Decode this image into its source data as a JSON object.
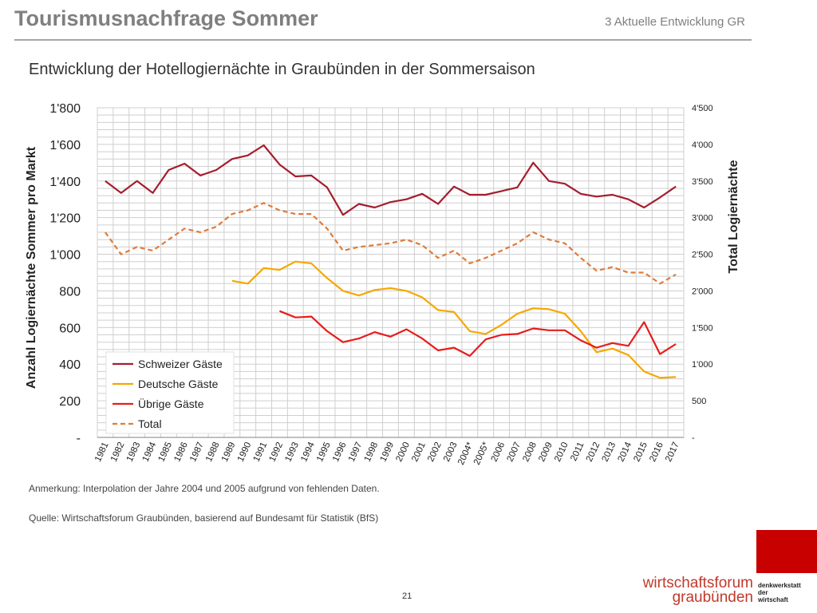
{
  "header": {
    "title": "Tourismusnachfrage Sommer",
    "section": "3 Aktuelle Entwicklung GR"
  },
  "chart_title": "Entwicklung der Hotellogiernächte in Graubünden in der Sommersaison",
  "notes": {
    "anmerkung": "Anmerkung:  Interpolation der Jahre 2004 und 2005 aufgrund von fehlenden Daten.",
    "quelle": "Quelle: Wirtschaftsforum Graubünden, basierend auf Bundesamt für Statistik (BfS)"
  },
  "footer": {
    "page": "21",
    "logo_line1": "wirtschaftsforum",
    "logo_line2": "graubünden",
    "logo_side": [
      "denkwerkstatt",
      "der",
      "wirtschaft"
    ],
    "brand_color": "#c80000"
  },
  "chart_data": {
    "type": "line",
    "categories": [
      "1981",
      "1982",
      "1983",
      "1984",
      "1985",
      "1986",
      "1987",
      "1988",
      "1989",
      "1990",
      "1991",
      "1992",
      "1993",
      "1994",
      "1995",
      "1996",
      "1997",
      "1998",
      "1999",
      "2000",
      "2001",
      "2002",
      "2003",
      "2004*",
      "2005*",
      "2006",
      "2007",
      "2008",
      "2009",
      "2010",
      "2011",
      "2012",
      "2013",
      "2014",
      "2015",
      "2016",
      "2017"
    ],
    "ylabel": "Anzahl Logiernächte Sommer pro Markt",
    "y2label": "Total Logiernächte",
    "ylim": [
      0,
      1800
    ],
    "y2lim": [
      0,
      4500
    ],
    "yticks": [
      "-",
      "200",
      "400",
      "600",
      "800",
      "1'000",
      "1'200",
      "1'400",
      "1'600",
      "1'800"
    ],
    "y2ticks": [
      "-",
      "500",
      "1'000",
      "1'500",
      "2'000",
      "2'500",
      "3'000",
      "3'500",
      "4'000",
      "4'500"
    ],
    "grid": true,
    "legend_position": "bottom-left",
    "series": [
      {
        "name": "Schweizer Gäste",
        "axis": "left",
        "color": "#a51d2d",
        "dash": false,
        "values": [
          1400,
          1335,
          1400,
          1335,
          1460,
          1495,
          1430,
          1460,
          1520,
          1540,
          1595,
          1490,
          1425,
          1430,
          1365,
          1215,
          1275,
          1255,
          1285,
          1300,
          1330,
          1275,
          1370,
          1325,
          1325,
          1345,
          1365,
          1500,
          1400,
          1385,
          1330,
          1315,
          1325,
          1300,
          1255,
          1310,
          1370
        ]
      },
      {
        "name": "Deutsche Gäste",
        "axis": "left",
        "color": "#f5a800",
        "dash": false,
        "values": [
          null,
          null,
          null,
          null,
          null,
          null,
          null,
          null,
          855,
          840,
          925,
          915,
          960,
          950,
          870,
          800,
          775,
          805,
          815,
          800,
          765,
          695,
          685,
          580,
          565,
          615,
          675,
          705,
          700,
          675,
          580,
          465,
          485,
          450,
          360,
          325,
          330
        ]
      },
      {
        "name": "Übrige Gäste",
        "axis": "left",
        "color": "#e81c1c",
        "dash": false,
        "values": [
          null,
          null,
          null,
          null,
          null,
          null,
          null,
          null,
          null,
          null,
          null,
          690,
          655,
          660,
          580,
          520,
          540,
          575,
          550,
          590,
          540,
          475,
          490,
          445,
          535,
          560,
          565,
          595,
          585,
          585,
          530,
          490,
          515,
          500,
          630,
          455,
          510
        ]
      },
      {
        "name": "Total",
        "axis": "right",
        "color": "#e07b39",
        "dash": true,
        "values": [
          2800,
          2500,
          2600,
          2550,
          2700,
          2850,
          2800,
          2875,
          3050,
          3100,
          3200,
          3100,
          3050,
          3050,
          2850,
          2550,
          2600,
          2625,
          2650,
          2700,
          2625,
          2450,
          2550,
          2375,
          2450,
          2550,
          2650,
          2800,
          2700,
          2650,
          2450,
          2275,
          2325,
          2250,
          2250,
          2100,
          2225
        ]
      }
    ]
  }
}
